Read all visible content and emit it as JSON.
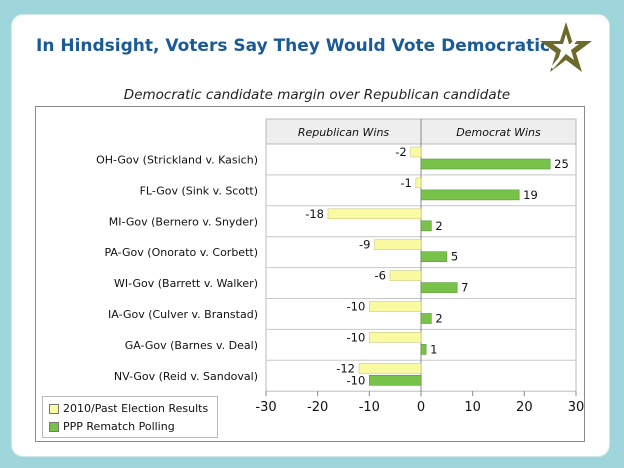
{
  "title": "In Hindsight, Voters Say They Would Vote Democratic",
  "subtitle": "Democratic candidate margin over Republican candidate",
  "colors": {
    "past": "#fafaa0",
    "rematch": "#78c24a",
    "header_bg": "#eeeeee",
    "title": "#1a5a96",
    "logo": "#6b6a2a"
  },
  "logo_icon": "star-logo-icon",
  "chart_data": {
    "type": "bar",
    "orientation": "horizontal",
    "categories": [
      "OH-Gov (Strickland v. Kasich)",
      "FL-Gov (Sink v. Scott)",
      "MI-Gov (Bernero v. Snyder)",
      "PA-Gov (Onorato v. Corbett)",
      "WI-Gov (Barrett v. Walker)",
      "IA-Gov (Culver v. Branstad)",
      "GA-Gov (Barnes v. Deal)",
      "NV-Gov (Reid v. Sandoval)"
    ],
    "series": [
      {
        "name": "2010/Past Election Results",
        "values": [
          -2,
          -1,
          -18,
          -9,
          -6,
          -10,
          -10,
          -12
        ]
      },
      {
        "name": "PPP Rematch Polling",
        "values": [
          25,
          19,
          2,
          5,
          7,
          2,
          1,
          -10
        ]
      }
    ],
    "xlim": [
      -30,
      30
    ],
    "xticks": [
      -30,
      -20,
      -10,
      0,
      10,
      20,
      30
    ],
    "region_labels": {
      "left": "Republican Wins",
      "right": "Democrat Wins"
    },
    "legend_position": "bottom-left",
    "grid": true
  }
}
